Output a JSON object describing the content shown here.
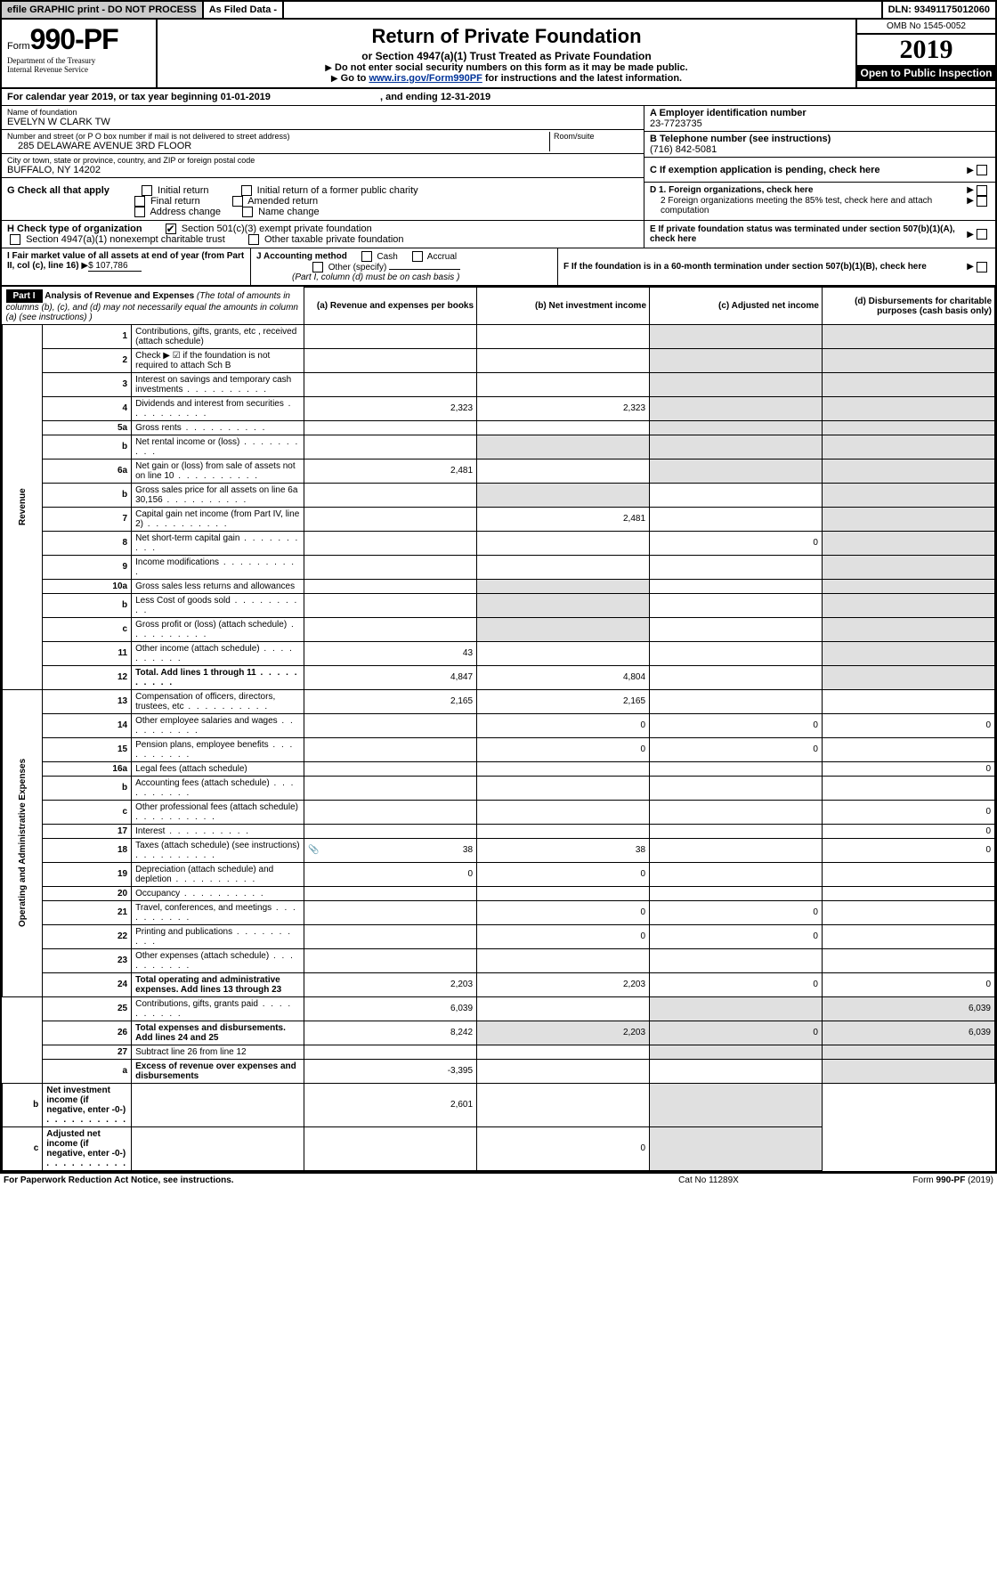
{
  "topbar": {
    "efile": "efile GRAPHIC print - DO NOT PROCESS",
    "asfiled": "As Filed Data -",
    "dln_label": "DLN:",
    "dln": "93491175012060"
  },
  "header": {
    "form_prefix": "Form",
    "form_no": "990-PF",
    "dept1": "Department of the Treasury",
    "dept2": "Internal Revenue Service",
    "title": "Return of Private Foundation",
    "subtitle": "or Section 4947(a)(1) Trust Treated as Private Foundation",
    "instr1": "Do not enter social security numbers on this form as it may be made public.",
    "instr2_pre": "Go to ",
    "instr2_link": "www.irs.gov/Form990PF",
    "instr2_post": " for instructions and the latest information.",
    "omb": "OMB No 1545-0052",
    "year": "2019",
    "open": "Open to Public Inspection"
  },
  "calyear": {
    "text": "For calendar year 2019, or tax year beginning 01-01-2019",
    "ending": ", and ending 12-31-2019"
  },
  "info": {
    "name_label": "Name of foundation",
    "name": "EVELYN W CLARK TW",
    "addr_label": "Number and street (or P O  box number if mail is not delivered to street address)",
    "addr": "285 DELAWARE AVENUE 3RD FLOOR",
    "room_label": "Room/suite",
    "city_label": "City or town, state or province, country, and ZIP or foreign postal code",
    "city": "BUFFALO, NY  14202",
    "a_label": "A Employer identification number",
    "a_val": "23-7723735",
    "b_label": "B Telephone number (see instructions)",
    "b_val": "(716) 842-5081",
    "c_label": "C If exemption application is pending, check here"
  },
  "g": {
    "label": "G Check all that apply",
    "opts": [
      "Initial return",
      "Initial return of a former public charity",
      "Final return",
      "Amended return",
      "Address change",
      "Name change"
    ]
  },
  "d": {
    "d1": "D 1. Foreign organizations, check here",
    "d2": "2 Foreign organizations meeting the 85% test, check here and attach computation",
    "e": "E  If private foundation status was terminated under section 507(b)(1)(A), check here"
  },
  "h": {
    "label": "H Check type of organization",
    "opt1": "Section 501(c)(3) exempt private foundation",
    "opt2": "Section 4947(a)(1) nonexempt charitable trust",
    "opt3": "Other taxable private foundation"
  },
  "i": {
    "label": "I Fair market value of all assets at end of year (from Part II, col  (c), line 16)",
    "val": "$  107,786"
  },
  "j": {
    "label": "J Accounting method",
    "cash": "Cash",
    "accrual": "Accrual",
    "other": "Other (specify)",
    "note": "(Part I, column (d) must be on cash basis )"
  },
  "f": {
    "label": "F  If the foundation is in a 60-month termination under section 507(b)(1)(B), check here"
  },
  "part1": {
    "label": "Part I",
    "title": "Analysis of Revenue and Expenses",
    "subtitle": "(The total of amounts in columns (b), (c), and (d) may not necessarily equal the amounts in column (a) (see instructions) )",
    "col_a": "(a) Revenue and expenses per books",
    "col_b": "(b) Net investment income",
    "col_c": "(c) Adjusted net income",
    "col_d": "(d) Disbursements for charitable purposes (cash basis only)",
    "side_rev": "Revenue",
    "side_exp": "Operating and Administrative Expenses"
  },
  "rows": [
    {
      "n": "1",
      "desc": "Contributions, gifts, grants, etc , received (attach schedule)",
      "a": "",
      "b": "",
      "c": "",
      "d": ""
    },
    {
      "n": "2",
      "desc": "Check ▶ ☑ if the foundation is not required to attach Sch  B",
      "a": "",
      "b": "",
      "c": "",
      "d": ""
    },
    {
      "n": "3",
      "desc": "Interest on savings and temporary cash investments",
      "a": "",
      "b": "",
      "c": "",
      "d": ""
    },
    {
      "n": "4",
      "desc": "Dividends and interest from securities",
      "a": "2,323",
      "b": "2,323",
      "c": "",
      "d": ""
    },
    {
      "n": "5a",
      "desc": "Gross rents",
      "a": "",
      "b": "",
      "c": "",
      "d": ""
    },
    {
      "n": "b",
      "desc": "Net rental income or (loss)",
      "a": "",
      "b": "",
      "c": "",
      "d": ""
    },
    {
      "n": "6a",
      "desc": "Net gain or (loss) from sale of assets not on line 10",
      "a": "2,481",
      "b": "",
      "c": "",
      "d": ""
    },
    {
      "n": "b",
      "desc": "Gross sales price for all assets on line 6a           30,156",
      "a": "",
      "b": "",
      "c": "",
      "d": ""
    },
    {
      "n": "7",
      "desc": "Capital gain net income (from Part IV, line 2)",
      "a": "",
      "b": "2,481",
      "c": "",
      "d": ""
    },
    {
      "n": "8",
      "desc": "Net short-term capital gain",
      "a": "",
      "b": "",
      "c": "0",
      "d": ""
    },
    {
      "n": "9",
      "desc": "Income modifications",
      "a": "",
      "b": "",
      "c": "",
      "d": ""
    },
    {
      "n": "10a",
      "desc": "Gross sales less returns and allowances",
      "a": "",
      "b": "",
      "c": "",
      "d": ""
    },
    {
      "n": "b",
      "desc": "Less  Cost of goods sold",
      "a": "",
      "b": "",
      "c": "",
      "d": ""
    },
    {
      "n": "c",
      "desc": "Gross profit or (loss) (attach schedule)",
      "a": "",
      "b": "",
      "c": "",
      "d": ""
    },
    {
      "n": "11",
      "desc": "Other income (attach schedule)",
      "a": "43",
      "b": "",
      "c": "",
      "d": ""
    },
    {
      "n": "12",
      "desc": "Total. Add lines 1 through 11",
      "bold": true,
      "a": "4,847",
      "b": "4,804",
      "c": "",
      "d": ""
    },
    {
      "n": "13",
      "desc": "Compensation of officers, directors, trustees, etc",
      "a": "2,165",
      "b": "2,165",
      "c": "",
      "d": ""
    },
    {
      "n": "14",
      "desc": "Other employee salaries and wages",
      "a": "",
      "b": "0",
      "c": "0",
      "d": "0"
    },
    {
      "n": "15",
      "desc": "Pension plans, employee benefits",
      "a": "",
      "b": "0",
      "c": "0",
      "d": ""
    },
    {
      "n": "16a",
      "desc": "Legal fees (attach schedule)",
      "a": "",
      "b": "",
      "c": "",
      "d": "0"
    },
    {
      "n": "b",
      "desc": "Accounting fees (attach schedule)",
      "a": "",
      "b": "",
      "c": "",
      "d": ""
    },
    {
      "n": "c",
      "desc": "Other professional fees (attach schedule)",
      "a": "",
      "b": "",
      "c": "",
      "d": "0"
    },
    {
      "n": "17",
      "desc": "Interest",
      "a": "",
      "b": "",
      "c": "",
      "d": "0"
    },
    {
      "n": "18",
      "desc": "Taxes (attach schedule) (see instructions)",
      "a": "38",
      "b": "38",
      "c": "",
      "d": "0",
      "icon": true
    },
    {
      "n": "19",
      "desc": "Depreciation (attach schedule) and depletion",
      "a": "0",
      "b": "0",
      "c": "",
      "d": ""
    },
    {
      "n": "20",
      "desc": "Occupancy",
      "a": "",
      "b": "",
      "c": "",
      "d": ""
    },
    {
      "n": "21",
      "desc": "Travel, conferences, and meetings",
      "a": "",
      "b": "0",
      "c": "0",
      "d": ""
    },
    {
      "n": "22",
      "desc": "Printing and publications",
      "a": "",
      "b": "0",
      "c": "0",
      "d": ""
    },
    {
      "n": "23",
      "desc": "Other expenses (attach schedule)",
      "a": "",
      "b": "",
      "c": "",
      "d": ""
    },
    {
      "n": "24",
      "desc": "Total operating and administrative expenses. Add lines 13 through 23",
      "bold": true,
      "a": "2,203",
      "b": "2,203",
      "c": "0",
      "d": "0"
    },
    {
      "n": "25",
      "desc": "Contributions, gifts, grants paid",
      "a": "6,039",
      "b": "",
      "c": "",
      "d": "6,039"
    },
    {
      "n": "26",
      "desc": "Total expenses and disbursements. Add lines 24 and 25",
      "bold": true,
      "a": "8,242",
      "b": "2,203",
      "c": "0",
      "d": "6,039"
    },
    {
      "n": "27",
      "desc": "Subtract line 26 from line 12",
      "a": "",
      "b": "",
      "c": "",
      "d": ""
    },
    {
      "n": "a",
      "desc": "Excess of revenue over expenses and disbursements",
      "bold": true,
      "a": "-3,395",
      "b": "",
      "c": "",
      "d": ""
    },
    {
      "n": "b",
      "desc": "Net investment income (if negative, enter -0-)",
      "bold": true,
      "a": "",
      "b": "2,601",
      "c": "",
      "d": ""
    },
    {
      "n": "c",
      "desc": "Adjusted net income (if negative, enter -0-)",
      "bold": true,
      "a": "",
      "b": "",
      "c": "0",
      "d": ""
    }
  ],
  "footer": {
    "left": "For Paperwork Reduction Act Notice, see instructions.",
    "mid": "Cat  No  11289X",
    "right": "Form 990-PF (2019)"
  }
}
